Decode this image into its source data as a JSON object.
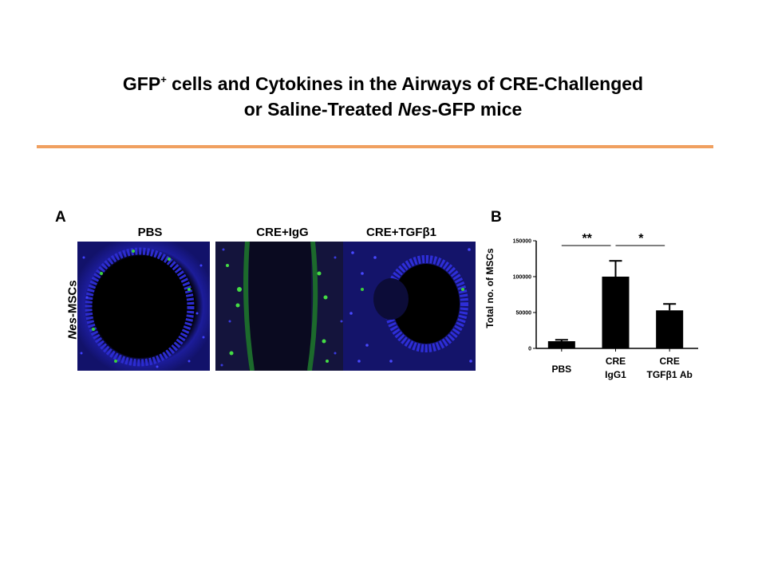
{
  "title": {
    "line1_main": "GFP",
    "line1_sup": "+",
    "line1_rest": " cells and Cytokines in the Airways of CRE-Challenged",
    "line2_a": "or Saline-Treated ",
    "line2_italic": "Nes",
    "line2_b": "-GFP mice"
  },
  "accent_color": "#f0a060",
  "panel_a": {
    "letter": "A",
    "row_label_italic": "Nes",
    "row_label_rest": "-MSCs",
    "images": [
      {
        "label": "PBS"
      },
      {
        "label": "CRE+IgG"
      },
      {
        "label": "CRE+TGFβ1"
      }
    ]
  },
  "panel_b": {
    "letter": "B"
  },
  "chart_data": {
    "type": "bar",
    "ylabel": "Total no. of MSCs",
    "ylim": [
      0,
      150000
    ],
    "yticks": [
      "0",
      "50000",
      "100000",
      "150000"
    ],
    "categories": [
      {
        "line1": "PBS",
        "line2": ""
      },
      {
        "line1": "CRE",
        "line2": "IgG1"
      },
      {
        "line1": "CRE",
        "line2": "TGFβ1 Ab"
      }
    ],
    "values": [
      10000,
      100000,
      53000
    ],
    "errors": [
      2000,
      22000,
      9000
    ],
    "bar_color": "#000000",
    "significance": [
      {
        "label": "**",
        "from": 0,
        "to": 1
      },
      {
        "label": "*",
        "from": 1,
        "to": 2
      }
    ]
  }
}
